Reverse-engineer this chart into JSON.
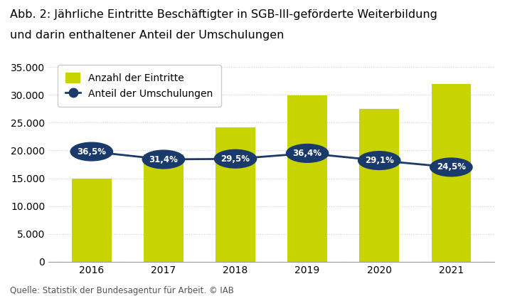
{
  "years": [
    2016,
    2017,
    2018,
    2019,
    2020,
    2021
  ],
  "bar_values": [
    14900,
    19300,
    24100,
    29900,
    27500,
    32000
  ],
  "line_values": [
    19800,
    18400,
    18500,
    19500,
    18200,
    17000
  ],
  "pct_labels": [
    "36,5%",
    "31,4%",
    "29,5%",
    "36,4%",
    "29,1%",
    "24,5%"
  ],
  "bar_color": "#c8d400",
  "line_color": "#1a3a6b",
  "dot_color": "#1a3a6b",
  "dot_edge_color": "#1a3a6b",
  "title_line1": "Abb. 2: Jährliche Eintritte Beschäftigter in SGB-III-geförderte Weiterbildung",
  "title_line2": "und darin enthaltener Anteil der Umschulungen",
  "ylabel": "",
  "ylim": [
    0,
    37000
  ],
  "yticks": [
    0,
    5000,
    10000,
    15000,
    20000,
    25000,
    30000,
    35000
  ],
  "ytick_labels": [
    "0",
    "5.000",
    "10.000",
    "15.000",
    "20.000",
    "25.000",
    "30.000",
    "35.000"
  ],
  "legend_bar_label": "Anzahl der Eintritte",
  "legend_line_label": "Anteil der Umschulungen",
  "source_text": "Quelle: Statistik der Bundesagentur für Arbeit. © IAB",
  "background_color": "#ffffff",
  "grid_color": "#cccccc",
  "title_fontsize": 11.5,
  "axis_fontsize": 10,
  "label_fontsize": 9,
  "source_fontsize": 8.5
}
